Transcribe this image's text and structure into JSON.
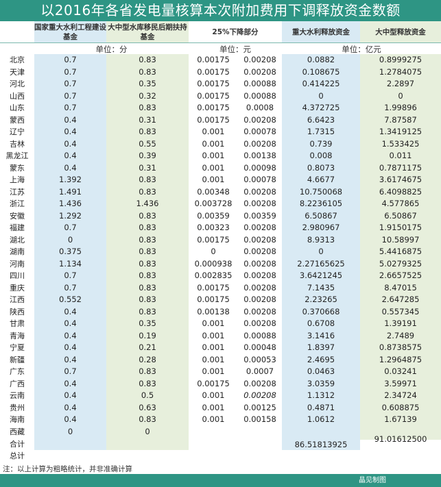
{
  "title": "以2016年各省发电量核算本次附加费用下调释放资金数额",
  "headers": [
    "国家重大水利工程建设基金",
    "大中型水库移民后期扶持基金",
    "25%下降部分",
    "重大水利释放资金",
    "大中型释放资金"
  ],
  "units": [
    "单位：分",
    "单位：元",
    "单位：亿元"
  ],
  "colors": {
    "bar": "#2e9584",
    "blue": "#d9eaf4",
    "green": "#e7efdc"
  },
  "rows": [
    [
      "北京",
      "0.7",
      "0.83",
      "0.00175",
      "0.00208",
      "0.0882",
      "0.8999275"
    ],
    [
      "天津",
      "0.7",
      "0.83",
      "0.00175",
      "0.00208",
      "0.108675",
      "1.2784075"
    ],
    [
      "河北",
      "0.7",
      "0.35",
      "0.00175",
      "0.00088",
      "0.414225",
      "2.2897"
    ],
    [
      "山西",
      "0.7",
      "0.32",
      "0.00175",
      "0.00088",
      "0",
      "0"
    ],
    [
      "山东",
      "0.7",
      "0.83",
      "0.00175",
      "0.0008",
      "4.372725",
      "1.99896"
    ],
    [
      "蒙西",
      "0.4",
      "0.31",
      "0.00175",
      "0.00208",
      "6.6423",
      "7.87587"
    ],
    [
      "辽宁",
      "0.4",
      "0.83",
      "0.001",
      "0.00078",
      "1.7315",
      "1.3419125"
    ],
    [
      "吉林",
      "0.4",
      "0.55",
      "0.001",
      "0.00208",
      "0.739",
      "1.533425"
    ],
    [
      "黑龙江",
      "0.4",
      "0.39",
      "0.001",
      "0.00138",
      "0.008",
      "0.011"
    ],
    [
      "蒙东",
      "0.4",
      "0.31",
      "0.001",
      "0.00098",
      "0.8073",
      "0.7871175"
    ],
    [
      "上海",
      "1.392",
      "0.83",
      "0.001",
      "0.00078",
      "4.6677",
      "3.6174675"
    ],
    [
      "江苏",
      "1.491",
      "0.83",
      "0.00348",
      "0.00208",
      "10.750068",
      "6.4098825"
    ],
    [
      "浙江",
      "1.436",
      "1.436",
      "0.003728",
      "0.00208",
      "8.2236105",
      "4.577865"
    ],
    [
      "安徽",
      "1.292",
      "0.83",
      "0.00359",
      "0.00359",
      "6.50867",
      "6.50867"
    ],
    [
      "福建",
      "0.7",
      "0.83",
      "0.00323",
      "0.00208",
      "2.980967",
      "1.9150175"
    ],
    [
      "湖北",
      "0",
      "0.83",
      "0.00175",
      "0.00208",
      "8.9313",
      "10.58997"
    ],
    [
      "湖南",
      "0.375",
      "0.83",
      "0",
      "0.00208",
      "0",
      "5.4416875"
    ],
    [
      "河南",
      "1.134",
      "0.83",
      "0.000938",
      "0.00208",
      "2.27165625",
      "5.0279325"
    ],
    [
      "四川",
      "0.7",
      "0.83",
      "0.002835",
      "0.00208",
      "3.6421245",
      "2.6657525"
    ],
    [
      "重庆",
      "0.7",
      "0.83",
      "0.00175",
      "0.00208",
      "7.1435",
      "8.47015"
    ],
    [
      "江西",
      "0.552",
      "0.83",
      "0.00175",
      "0.00208",
      "2.23265",
      "2.647285"
    ],
    [
      "陕西",
      "0.4",
      "0.83",
      "0.00138",
      "0.00208",
      "0.370668",
      "0.557345"
    ],
    [
      "甘肃",
      "0.4",
      "0.35",
      "0.001",
      "0.00208",
      "0.6708",
      "1.39191"
    ],
    [
      "青海",
      "0.4",
      "0.19",
      "0.001",
      "0.00088",
      "3.1416",
      "2.7489"
    ],
    [
      "宁夏",
      "0.4",
      "0.21",
      "0.001",
      "0.00048",
      "1.8397",
      "0.8738575"
    ],
    [
      "新疆",
      "0.4",
      "0.28",
      "0.001",
      "0.00053",
      "2.4695",
      "1.2964875"
    ],
    [
      "广东",
      "0.7",
      "0.83",
      "0.001",
      "0.0007",
      "0.0463",
      "0.03241"
    ],
    [
      "广西",
      "0.4",
      "0.83",
      "0.00175",
      "0.00208",
      "3.0359",
      "3.59971"
    ],
    [
      "云南",
      "0.4",
      "0.5",
      "0.001",
      "0.00208",
      "1.1312",
      "2.34724"
    ],
    [
      "贵州",
      "0.4",
      "0.63",
      "0.001",
      "0.00125",
      "0.4871",
      "0.608875"
    ],
    [
      "海南",
      "0.4",
      "0.83",
      "0.001",
      "0.00158",
      "1.0612",
      "1.67139"
    ],
    [
      "西藏",
      "0",
      "0",
      "",
      "",
      "",
      ""
    ]
  ],
  "total_label": "合计",
  "grand_total_label": "总计",
  "totals": [
    "86.51813925",
    "91.01612500"
  ],
  "note": "注：以上计算为粗略统计，并非准确计算",
  "credit": "晶见制图"
}
